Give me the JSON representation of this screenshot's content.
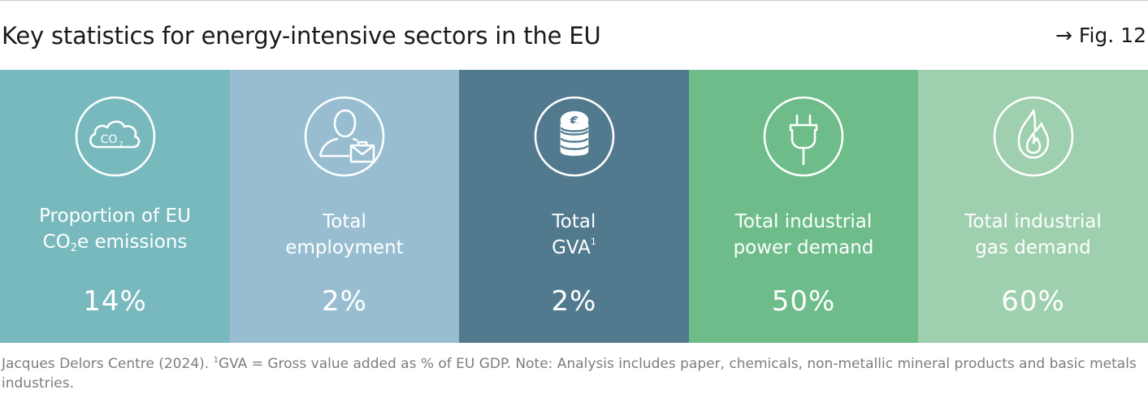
{
  "header": {
    "title": "Key statistics for energy-intensive sectors in the EU",
    "fig_ref": "→ Fig. 12"
  },
  "panels": [
    {
      "color": "#78b9be",
      "icon": "co2-cloud-icon",
      "icon_text": "CO",
      "icon_sub": "2",
      "label_line1": "Proportion of EU",
      "label_line2_pre": "CO",
      "label_line2_sub": "2",
      "label_line2_post": "e emissions",
      "value": "14%"
    },
    {
      "color": "#98bdd1",
      "icon": "person-briefcase-icon",
      "label_line1": "Total",
      "label_line2": "employment",
      "value": "2%"
    },
    {
      "color": "#527a8e",
      "icon": "euro-coins-icon",
      "icon_text": "€",
      "label_line1": "Total",
      "label_line2": "GVA",
      "label_sup": "1",
      "value": "2%"
    },
    {
      "color": "#6dbc89",
      "icon": "power-plug-icon",
      "label_line1": "Total industrial",
      "label_line2": "power demand",
      "value": "50%"
    },
    {
      "color": "#9ecfae",
      "icon": "gas-flame-icon",
      "label_line1": "Total industrial",
      "label_line2": "gas demand",
      "value": "60%"
    }
  ],
  "footer": {
    "source": "Jacques Delors Centre (2024).",
    "sup": "1",
    "note": "GVA = Gross value added as % of EU GDP. Note: Analysis includes paper, chemicals, non-metallic mineral products and basic metals industries."
  }
}
